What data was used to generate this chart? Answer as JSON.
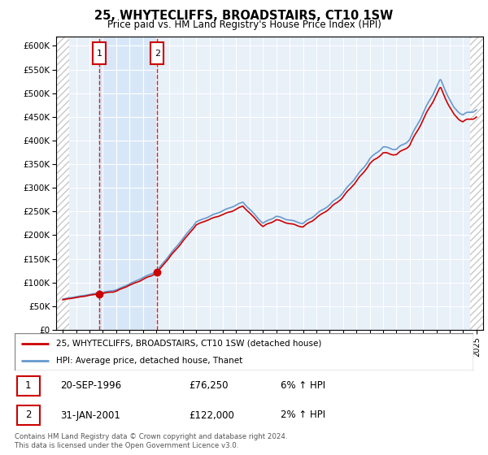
{
  "title": "25, WHYTECLIFFS, BROADSTAIRS, CT10 1SW",
  "subtitle": "Price paid vs. HM Land Registry's House Price Index (HPI)",
  "xlim": [
    1993.5,
    2025.5
  ],
  "ylim": [
    0,
    620000
  ],
  "yticks": [
    0,
    50000,
    100000,
    150000,
    200000,
    250000,
    300000,
    350000,
    400000,
    450000,
    500000,
    550000,
    600000
  ],
  "ytick_labels": [
    "£0",
    "£50K",
    "£100K",
    "£150K",
    "£200K",
    "£250K",
    "£300K",
    "£350K",
    "£400K",
    "£450K",
    "£500K",
    "£550K",
    "£600K"
  ],
  "xticks": [
    1994,
    1995,
    1996,
    1997,
    1998,
    1999,
    2000,
    2001,
    2002,
    2003,
    2004,
    2005,
    2006,
    2007,
    2008,
    2009,
    2010,
    2011,
    2012,
    2013,
    2014,
    2015,
    2016,
    2017,
    2018,
    2019,
    2020,
    2021,
    2022,
    2023,
    2024,
    2025
  ],
  "sale1_x": 1996.72,
  "sale1_y": 76250,
  "sale2_x": 2001.08,
  "sale2_y": 122000,
  "hpi_color": "#6699cc",
  "sale_color": "#cc0000",
  "legend_label1": "25, WHYTECLIFFS, BROADSTAIRS, CT10 1SW (detached house)",
  "legend_label2": "HPI: Average price, detached house, Thanet",
  "sale1_date": "20-SEP-1996",
  "sale1_price": "£76,250",
  "sale1_hpi": "6% ↑ HPI",
  "sale2_date": "31-JAN-2001",
  "sale2_price": "£122,000",
  "sale2_hpi": "2% ↑ HPI",
  "footer": "Contains HM Land Registry data © Crown copyright and database right 2024.\nThis data is licensed under the Open Government Licence v3.0.",
  "plot_bg": "#e8f0f8",
  "grid_color": "#ffffff",
  "hatch_color": "#c8c8c8"
}
